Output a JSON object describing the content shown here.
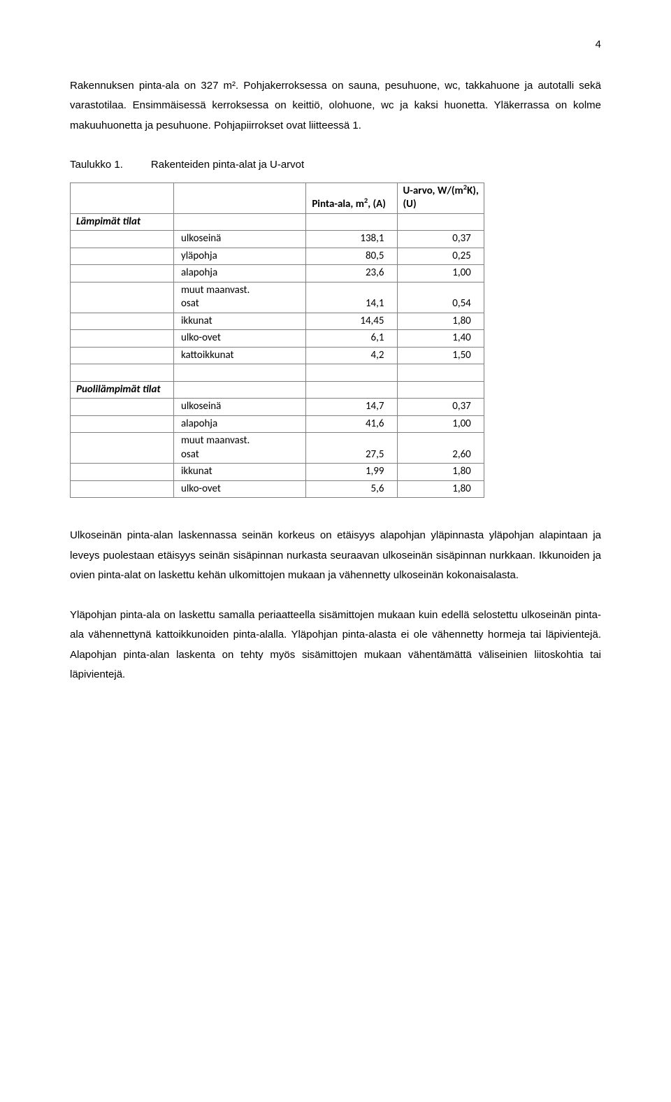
{
  "page_number": "4",
  "para1": "Rakennuksen pinta-ala on 327 m². Pohjakerroksessa on sauna, pesuhuone, wc, takkahuone ja autotalli sekä varastotilaa. Ensimmäisessä kerroksessa on keittiö, olohuone, wc ja kaksi huonetta. Yläkerrassa on kolme makuuhuonetta ja pesuhuone. Pohjapiirrokset ovat liitteessä 1.",
  "table_caption_label": "Taulukko 1.",
  "table_caption_text": "Rakenteiden pinta-alat ja U-arvot",
  "header_area": "Pinta-ala, m², (A)",
  "header_uvalue": "U-arvo, W/(m²K), (U)",
  "section1": "Lämpimät tilat",
  "rows1": [
    {
      "label": "ulkoseinä",
      "area": "138,1",
      "u": "0,37"
    },
    {
      "label": "yläpohja",
      "area": "80,5",
      "u": "0,25"
    },
    {
      "label": "alapohja",
      "area": "23,6",
      "u": "1,00"
    },
    {
      "label": "muut maanvast. osat",
      "area": "14,1",
      "u": "0,54"
    },
    {
      "label": "ikkunat",
      "area": "14,45",
      "u": "1,80"
    },
    {
      "label": "ulko-ovet",
      "area": "6,1",
      "u": "1,40"
    },
    {
      "label": "kattoikkunat",
      "area": "4,2",
      "u": "1,50"
    }
  ],
  "section2": "Puolilämpimät tilat",
  "rows2": [
    {
      "label": "ulkoseinä",
      "area": "14,7",
      "u": "0,37"
    },
    {
      "label": "alapohja",
      "area": "41,6",
      "u": "1,00"
    },
    {
      "label": "muut maanvast. osat",
      "area": "27,5",
      "u": "2,60"
    },
    {
      "label": "ikkunat",
      "area": "1,99",
      "u": "1,80"
    },
    {
      "label": "ulko-ovet",
      "area": "5,6",
      "u": "1,80"
    }
  ],
  "para2": "Ulkoseinän pinta-alan laskennassa seinän korkeus on etäisyys alapohjan yläpinnasta yläpohjan alapintaan ja leveys puolestaan etäisyys seinän sisäpinnan nurkasta seuraavan ulkoseinän sisäpinnan nurkkaan. Ikkunoiden ja ovien pinta-alat on laskettu kehän ulkomittojen mukaan ja vähennetty ulkoseinän kokonaisalasta.",
  "para3": "Yläpohjan pinta-ala on laskettu samalla periaatteella sisämittojen mukaan kuin edellä selostettu ulkoseinän pinta-ala vähennettynä kattoikkunoiden pinta-alalla. Yläpohjan pinta-alasta ei ole vähennetty hormeja tai läpivientejä. Alapohjan pinta-alan laskenta on tehty myös sisämittojen mukaan vähentämättä väliseinien liitoskohtia tai läpivientejä.",
  "row_labels": {
    "muut_line1": "muut maanvast.",
    "muut_line2": "osat"
  }
}
